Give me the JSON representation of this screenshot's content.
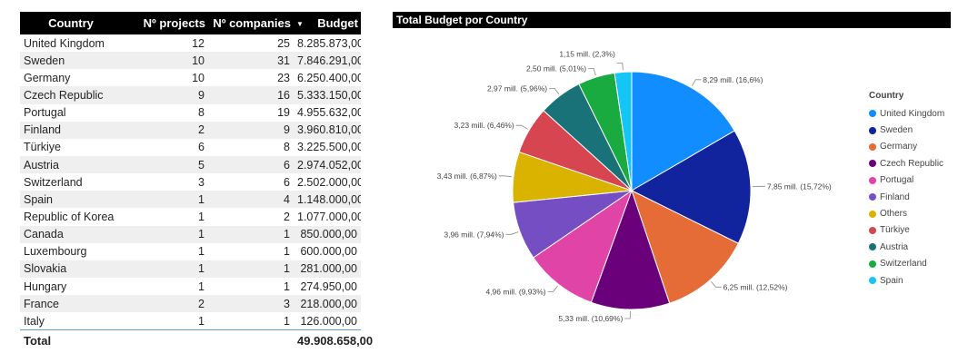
{
  "table": {
    "headers": [
      "Country",
      "Nº projects",
      "Nº companies",
      "Budget"
    ],
    "sort_icon": "sort-descending-icon",
    "rows": [
      [
        "United Kingdom",
        "12",
        "25",
        "8.285.873,00"
      ],
      [
        "Sweden",
        "10",
        "31",
        "7.846.291,00"
      ],
      [
        "Germany",
        "10",
        "23",
        "6.250.400,00"
      ],
      [
        "Czech Republic",
        "9",
        "16",
        "5.333.150,00"
      ],
      [
        "Portugal",
        "8",
        "19",
        "4.955.632,00"
      ],
      [
        "Finland",
        "2",
        "9",
        "3.960.810,00"
      ],
      [
        "Türkiye",
        "6",
        "8",
        "3.225.500,00"
      ],
      [
        "Austria",
        "5",
        "6",
        "2.974.052,00"
      ],
      [
        "Switzerland",
        "3",
        "6",
        "2.502.000,00"
      ],
      [
        "Spain",
        "1",
        "4",
        "1.148.000,00"
      ],
      [
        "Republic of Korea",
        "1",
        "2",
        "1.077.000,00"
      ],
      [
        "Canada",
        "1",
        "1",
        "850.000,00"
      ],
      [
        "Luxembourg",
        "1",
        "1",
        "600.000,00"
      ],
      [
        "Slovakia",
        "1",
        "1",
        "281.000,00"
      ],
      [
        "Hungary",
        "1",
        "1",
        "274.950,00"
      ],
      [
        "France",
        "2",
        "3",
        "218.000,00"
      ],
      [
        "Italy",
        "1",
        "1",
        "126.000,00"
      ]
    ],
    "total_label": "Total",
    "total_budget": "49.908.658,00"
  },
  "chart_data": {
    "type": "pie",
    "title": "Total Budget por Country",
    "legend_title": "Country",
    "legend_position": "right",
    "slices": [
      {
        "name": "United Kingdom",
        "value": 8.29,
        "label": "8,29 mill. (16,6%)",
        "color": "#118DFF"
      },
      {
        "name": "Sweden",
        "value": 7.85,
        "label": "7,85 mill. (15,72%)",
        "color": "#12239E"
      },
      {
        "name": "Germany",
        "value": 6.25,
        "label": "6,25 mill. (12,52%)",
        "color": "#E66C37"
      },
      {
        "name": "Czech Republic",
        "value": 5.33,
        "label": "5,33 mill. (10,69%)",
        "color": "#6B007B"
      },
      {
        "name": "Portugal",
        "value": 4.96,
        "label": "4,96 mill. (9,93%)",
        "color": "#E044A7"
      },
      {
        "name": "Finland",
        "value": 3.96,
        "label": "3,96 mill. (7,94%)",
        "color": "#744EC2"
      },
      {
        "name": "Others",
        "value": 3.43,
        "label": "3,43 mill. (6,87%)",
        "color": "#D9B300"
      },
      {
        "name": "Türkiye",
        "value": 3.23,
        "label": "3,23 mill. (6,46%)",
        "color": "#D64550"
      },
      {
        "name": "Austria",
        "value": 2.97,
        "label": "2,97 mill. (5,96%)",
        "color": "#197278"
      },
      {
        "name": "Switzerland",
        "value": 2.5,
        "label": "2,50 mill. (5,01%)",
        "color": "#1AAB40"
      },
      {
        "name": "Spain",
        "value": 1.15,
        "label": "1,15 mill. (2,3%)",
        "color": "#15C6F4"
      }
    ]
  }
}
